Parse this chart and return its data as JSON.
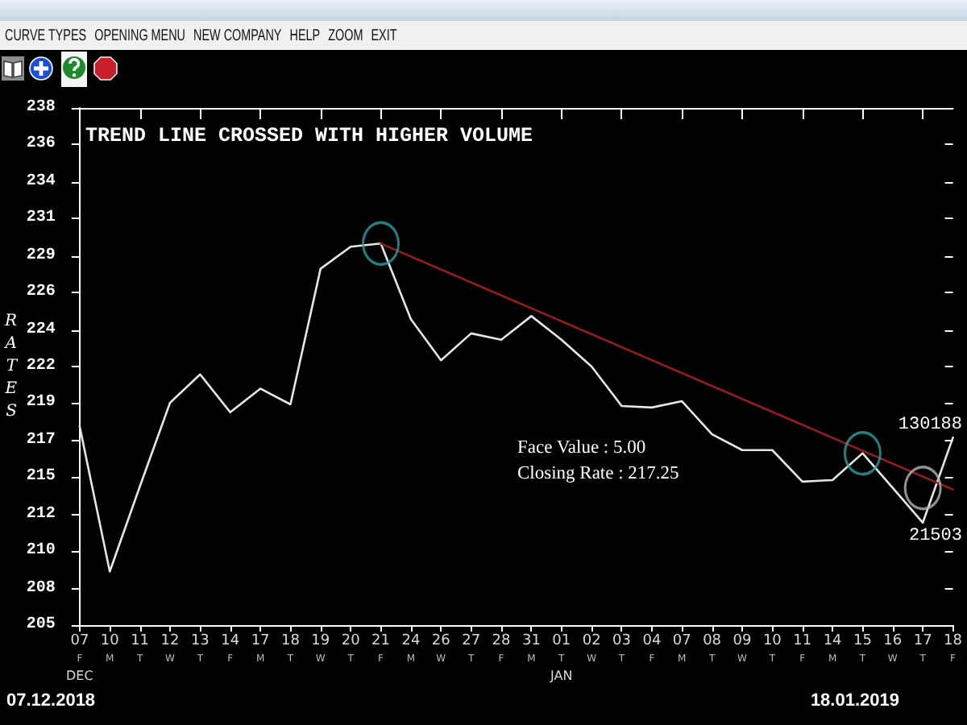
{
  "chart_data": {
    "type": "line",
    "title": "TREND LINE CROSSED WITH HIGHER VOLUME",
    "ylabel": "RATES",
    "categories": [
      "07\nF\nDEC",
      "10\nM",
      "11\nT",
      "12\nW",
      "13\nT",
      "14\nF",
      "17\nM",
      "18\nT",
      "19\nW",
      "20\nT",
      "21\nF",
      "24\nM",
      "26\nW",
      "27\nT",
      "28\nF",
      "31\nM",
      "01\nT\nJAN",
      "02\nW",
      "03\nT",
      "04\nF",
      "07\nM",
      "08\nT",
      "09\nW",
      "10\nT",
      "11\nF",
      "14\nM",
      "15\nT",
      "16\nW",
      "17\nT",
      "18\nF"
    ],
    "series": [
      {
        "color": "#e6e6e6",
        "values": [
          218.0,
          208.8,
          214.2,
          219.5,
          221.3,
          218.9,
          220.4,
          219.4,
          228.0,
          229.4,
          229.6,
          224.8,
          222.2,
          223.9,
          223.5,
          225.0,
          223.5,
          221.8,
          219.3,
          219.2,
          219.6,
          217.5,
          216.5,
          216.5,
          214.5,
          214.6,
          216.3,
          214.1,
          211.9,
          217.3
        ]
      },
      {
        "type": "line",
        "color": "#9b1c1c",
        "x": [
          "21\nF",
          "18\nF"
        ],
        "values": [
          229.6,
          214.0
        ]
      },
      {
        "type": "scatter",
        "color": "#2aa0a0",
        "marker": "circle",
        "x": [
          "21\nF",
          "15\nT"
        ],
        "values": [
          229.6,
          216.3
        ]
      },
      {
        "type": "scatter",
        "color": "#b4b4b4",
        "marker": "circle",
        "x": [
          "17\nT"
        ],
        "values": [
          214.1
        ]
      }
    ],
    "ylim": [
      205.4,
      238.2
    ],
    "yticks": [
      {
        "value": 205.4,
        "label": "205"
      },
      {
        "value": 207.7,
        "label": "208"
      },
      {
        "value": 210.1,
        "label": "210"
      },
      {
        "value": 212.4,
        "label": "212"
      },
      {
        "value": 214.8,
        "label": "215"
      },
      {
        "value": 217.1,
        "label": "217"
      },
      {
        "value": 219.5,
        "label": "219"
      },
      {
        "value": 221.8,
        "label": "222"
      },
      {
        "value": 224.1,
        "label": "224"
      },
      {
        "value": 226.5,
        "label": "226"
      },
      {
        "value": 228.8,
        "label": "229"
      },
      {
        "value": 231.2,
        "label": "231"
      },
      {
        "value": 233.5,
        "label": "234"
      },
      {
        "value": 235.9,
        "label": "236"
      },
      {
        "value": 238.2,
        "label": "238"
      }
    ],
    "grid": false,
    "annotations": [
      "Face Value : 5.00",
      "Closing Rate : 217.25",
      "07.12.2018",
      "18.01.2019",
      "130188",
      "21503",
      "CURVE TYPES",
      "OPENING MENU",
      "NEW COMPANY",
      "HELP",
      "ZOOM",
      "EXIT"
    ]
  }
}
